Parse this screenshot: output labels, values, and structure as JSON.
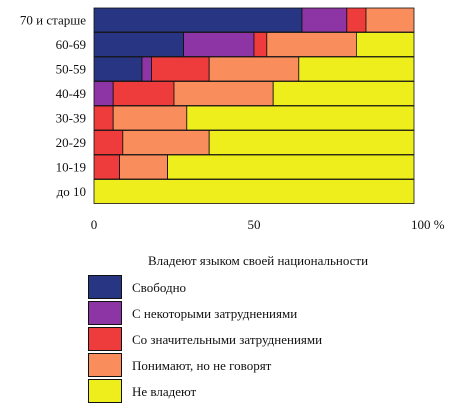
{
  "chart_data": {
    "type": "bar",
    "orientation": "horizontal",
    "stacked": true,
    "categories": [
      "70 и старше",
      "60-69",
      "50-59",
      "40-49",
      "30-39",
      "20-29",
      "10-19",
      "до 10"
    ],
    "series": [
      {
        "name": "Свободно",
        "color": "#283582",
        "values": [
          65,
          28,
          15,
          0,
          0,
          0,
          0,
          0
        ]
      },
      {
        "name": "С некоторыми затруднениями",
        "color": "#8e35a6",
        "values": [
          14,
          22,
          3,
          6,
          0,
          0,
          0,
          0
        ]
      },
      {
        "name": "Со значительными затруднениями",
        "color": "#ee3b3b",
        "values": [
          6,
          4,
          18,
          19,
          6,
          9,
          8,
          0
        ]
      },
      {
        "name": "Понимают, но не говорят",
        "color": "#f98d5c",
        "values": [
          15,
          28,
          28,
          31,
          23,
          27,
          15,
          0
        ]
      },
      {
        "name": "Не владеют",
        "color": "#eeee1c",
        "values": [
          0,
          18,
          36,
          44,
          71,
          64,
          77,
          100
        ]
      }
    ],
    "xlim": [
      0,
      100
    ],
    "xticks": [
      "0",
      "50",
      "100 %"
    ],
    "xtick_values": [
      0,
      50,
      100
    ],
    "grid": false,
    "legend_position": "bottom",
    "legend_title": "Владеют языком своей национальности"
  }
}
